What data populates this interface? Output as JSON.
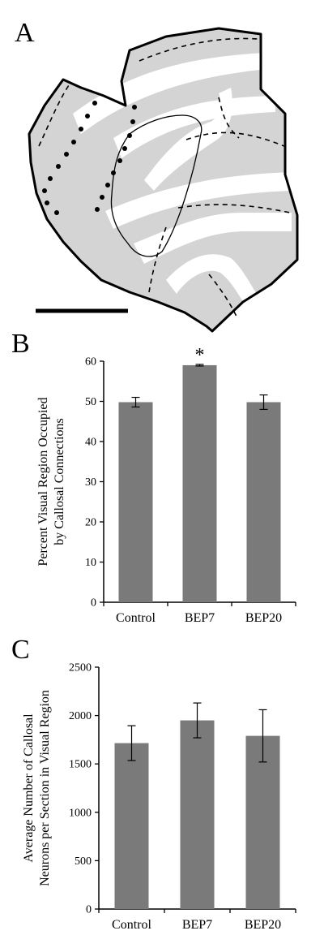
{
  "panels": {
    "a": {
      "label": "A"
    },
    "b": {
      "label": "B"
    },
    "c": {
      "label": "C"
    }
  },
  "chart_data": [
    {
      "type": "bar",
      "panel": "B",
      "categories": [
        "Control",
        "BEP7",
        "BEP20"
      ],
      "values": [
        49.8,
        59.0,
        49.8
      ],
      "errors": [
        1.2,
        0.2,
        1.8
      ],
      "significance": [
        "",
        "*",
        ""
      ],
      "ylabel_lines": [
        "Percent Visual Region Occupied",
        "by Callosal Connections"
      ],
      "ylim": [
        0,
        60
      ],
      "yticks": [
        0,
        10,
        20,
        30,
        40,
        50,
        60
      ],
      "color": "#7a7a7a"
    },
    {
      "type": "bar",
      "panel": "C",
      "categories": [
        "Control",
        "BEP7",
        "BEP20"
      ],
      "values": [
        1715,
        1950,
        1790
      ],
      "errors": [
        180,
        180,
        270
      ],
      "significance": [
        "",
        "",
        ""
      ],
      "ylabel_lines": [
        "Average Number of Callosal",
        "Neurons per Section in Visual Region"
      ],
      "ylim": [
        0,
        2500
      ],
      "yticks": [
        0,
        500,
        1000,
        1500,
        2000,
        2500
      ],
      "color": "#7a7a7a"
    }
  ]
}
